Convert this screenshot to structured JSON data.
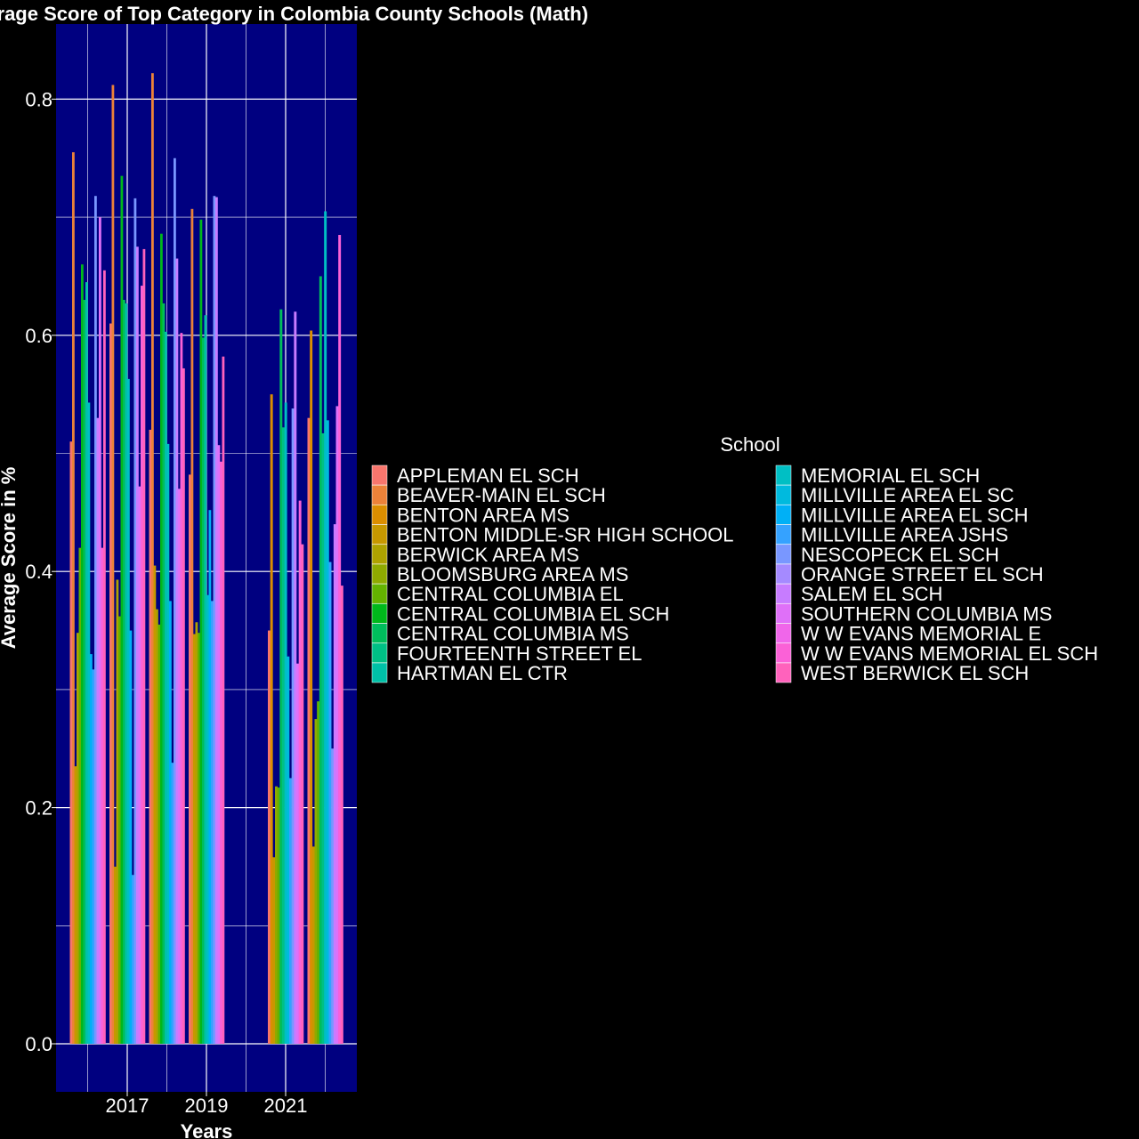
{
  "chart_data": {
    "type": "bar",
    "title": "Average Score of Top Category in Colombia County Schools (Math)",
    "xlabel": "Years",
    "ylabel": "Average Score in %",
    "x_ticks": [
      "2017",
      "2019",
      "2021"
    ],
    "y_ticks": [
      "0.0",
      "0.2",
      "0.4",
      "0.6",
      "0.8"
    ],
    "ylim": [
      -0.04,
      0.86
    ],
    "legend_title": "School",
    "legend_position": "right",
    "grid": true,
    "colors": {
      "panel": "#000080",
      "background": "#000000",
      "grid": "#ffffff",
      "text": "#ffffff"
    },
    "series": [
      {
        "name": "APPLEMAN EL SCH",
        "color": "#F8766D"
      },
      {
        "name": "BEAVER-MAIN EL SCH",
        "color": "#EC8239"
      },
      {
        "name": "BENTON AREA MS",
        "color": "#DB8E00"
      },
      {
        "name": "BENTON MIDDLE-SR HIGH SCHOOL",
        "color": "#C79800"
      },
      {
        "name": "BERWICK AREA MS",
        "color": "#AEA200"
      },
      {
        "name": "BLOOMSBURG AREA MS",
        "color": "#8FAA00"
      },
      {
        "name": "CENTRAL COLUMBIA EL",
        "color": "#64B200"
      },
      {
        "name": "CENTRAL COLUMBIA EL SCH",
        "color": "#00B81B"
      },
      {
        "name": "CENTRAL COLUMBIA MS",
        "color": "#00BD5C"
      },
      {
        "name": "FOURTEENTH STREET EL",
        "color": "#00C085"
      },
      {
        "name": "HARTMAN EL CTR",
        "color": "#00C1A7"
      },
      {
        "name": "MEMORIAL EL SCH",
        "color": "#00BFC4"
      },
      {
        "name": "MILLVILLE AREA EL SC",
        "color": "#00BADE"
      },
      {
        "name": "MILLVILLE AREA EL SCH",
        "color": "#00B0F6"
      },
      {
        "name": "MILLVILLE AREA JSHS",
        "color": "#35A2FF"
      },
      {
        "name": "NESCOPECK EL SCH",
        "color": "#7997FF"
      },
      {
        "name": "ORANGE STREET EL SCH",
        "color": "#A58AFF"
      },
      {
        "name": "SALEM EL SCH",
        "color": "#C77CFF"
      },
      {
        "name": "SOUTHERN COLUMBIA MS",
        "color": "#DF70F8"
      },
      {
        "name": "W W EVANS MEMORIAL E",
        "color": "#F066EA"
      },
      {
        "name": "W W EVANS MEMORIAL EL SCH",
        "color": "#FB61D7"
      },
      {
        "name": "WEST BERWICK EL SCH",
        "color": "#FF62BC"
      }
    ],
    "years": [
      {
        "year": 2016,
        "values": [
          0.51,
          0.755,
          0.235,
          0.348,
          0.42,
          0.66,
          0.63,
          0.645,
          0.543,
          0.33,
          0.317,
          0.718,
          0.53,
          0.7,
          0.42,
          0.655
        ]
      },
      {
        "year": 2017,
        "values": [
          0.61,
          0.812,
          0.15,
          0.393,
          0.362,
          0.735,
          0.63,
          0.627,
          0.563,
          0.35,
          0.143,
          0.716,
          0.675,
          0.472,
          0.642,
          0.673
        ]
      },
      {
        "year": 2018,
        "values": [
          0.52,
          0.822,
          0.405,
          0.368,
          0.355,
          0.686,
          0.627,
          0.603,
          0.508,
          0.375,
          0.238,
          0.75,
          0.665,
          0.47,
          0.602,
          0.572
        ]
      },
      {
        "year": 2019,
        "values": [
          0.482,
          0.707,
          0.347,
          0.357,
          0.348,
          0.698,
          0.598,
          0.617,
          0.38,
          0.452,
          0.375,
          0.718,
          0.717,
          0.507,
          0.493,
          0.582
        ]
      },
      {
        "year": 2021,
        "values": [
          0.35,
          0.55,
          0.158,
          0.218,
          0.217,
          0.622,
          0.522,
          0.543,
          0.328,
          0.225,
          0.538,
          0.62,
          0.322,
          0.46,
          0.423
        ]
      },
      {
        "year": 2022,
        "values": [
          0.53,
          0.604,
          0.167,
          0.275,
          0.29,
          0.65,
          0.517,
          0.705,
          0.528,
          0.408,
          0.25,
          0.44,
          0.54,
          0.685,
          0.388
        ]
      }
    ]
  }
}
